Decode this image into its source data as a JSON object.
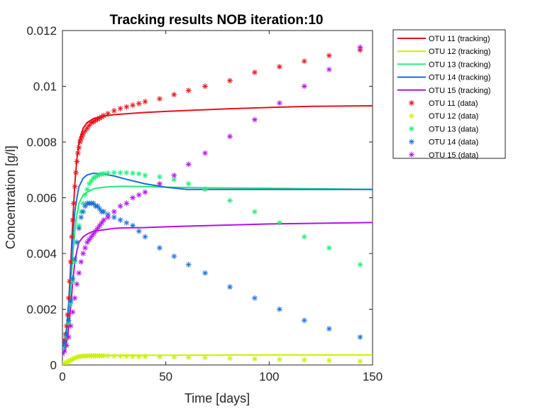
{
  "chart_data": {
    "type": "line",
    "title": "Tracking results NOB iteration:10",
    "xlabel": "Time [days]",
    "ylabel": "Concentration [g/l]",
    "xlim": [
      0,
      150
    ],
    "ylim": [
      0,
      0.012
    ],
    "xticks": [
      0,
      50,
      100,
      150
    ],
    "yticks": [
      0,
      0.002,
      0.004,
      0.006,
      0.008,
      0.01,
      0.012
    ],
    "xtick_labels": [
      "0",
      "50",
      "100",
      "150"
    ],
    "ytick_labels": [
      "0",
      "0.002",
      "0.004",
      "0.006",
      "0.008",
      "0.01",
      "0.012"
    ],
    "grid": false,
    "legend_position": "top-right (outside)",
    "series": [
      {
        "name": "OTU 11 (tracking)",
        "kind": "line",
        "color": "#e8101a",
        "x": [
          0,
          1,
          2,
          3,
          4,
          5,
          6,
          7,
          8,
          10,
          12,
          15,
          20,
          25,
          30,
          40,
          50,
          60,
          80,
          100,
          120,
          150
        ],
        "y": [
          0.00065,
          0.0008,
          0.0013,
          0.0022,
          0.0036,
          0.0052,
          0.0065,
          0.0074,
          0.008,
          0.0085,
          0.0087,
          0.00884,
          0.00893,
          0.00898,
          0.00901,
          0.00906,
          0.0091,
          0.00913,
          0.00919,
          0.00924,
          0.00928,
          0.0093
        ]
      },
      {
        "name": "OTU 12 (tracking)",
        "kind": "line",
        "color": "#ccf000",
        "x": [
          0,
          2,
          4,
          6,
          8,
          10,
          15,
          20,
          30,
          50,
          100,
          150
        ],
        "y": [
          3e-05,
          6e-05,
          0.00013,
          0.00022,
          0.00028,
          0.00031,
          0.00033,
          0.00034,
          0.00035,
          0.00035,
          0.00036,
          0.00036
        ]
      },
      {
        "name": "OTU 13 (tracking)",
        "kind": "line",
        "color": "#20ec7a",
        "x": [
          0,
          1,
          2,
          3,
          4,
          5,
          6,
          7,
          8,
          10,
          12,
          15,
          20,
          25,
          30,
          40,
          50,
          70,
          100,
          150
        ],
        "y": [
          0.0006,
          0.0007,
          0.0011,
          0.0018,
          0.0028,
          0.0039,
          0.0048,
          0.0054,
          0.0058,
          0.0061,
          0.0062,
          0.00632,
          0.00638,
          0.0064,
          0.00641,
          0.0064,
          0.00638,
          0.00636,
          0.00634,
          0.0063
        ]
      },
      {
        "name": "OTU 14 (tracking)",
        "kind": "line",
        "color": "#1a6fd8",
        "x": [
          0,
          1,
          2,
          3,
          4,
          5,
          6,
          7,
          8,
          10,
          12,
          15,
          20,
          25,
          30,
          40,
          50,
          60,
          80,
          100,
          120,
          150
        ],
        "y": [
          0.0007,
          0.0008,
          0.0013,
          0.0022,
          0.0034,
          0.0046,
          0.0055,
          0.006,
          0.0064,
          0.0067,
          0.00682,
          0.00688,
          0.00685,
          0.00678,
          0.00668,
          0.0065,
          0.00638,
          0.0063,
          0.0063,
          0.0063,
          0.0063,
          0.0063
        ]
      },
      {
        "name": "OTU 15 (tracking)",
        "kind": "line",
        "color": "#b212e6",
        "x": [
          0,
          1,
          2,
          3,
          4,
          5,
          6,
          7,
          8,
          10,
          12,
          15,
          20,
          25,
          30,
          40,
          50,
          70,
          100,
          150
        ],
        "y": [
          0.0004,
          0.0005,
          0.0008,
          0.0013,
          0.0021,
          0.003,
          0.0037,
          0.0041,
          0.0044,
          0.0046,
          0.0047,
          0.0048,
          0.00485,
          0.0049,
          0.00492,
          0.00493,
          0.00496,
          0.005,
          0.00506,
          0.00511
        ]
      },
      {
        "name": "OTU 11 (data)",
        "kind": "marker",
        "color": "#e8101a",
        "x": [
          0,
          0.5,
          1,
          1.5,
          2,
          2.5,
          3,
          3.5,
          4,
          4.5,
          5,
          5.5,
          6,
          6.5,
          7,
          7.5,
          8,
          8.5,
          9,
          9.5,
          10,
          11,
          12,
          13,
          14,
          15,
          16,
          17,
          18,
          19,
          20,
          22,
          25,
          28,
          31,
          34,
          37,
          40,
          47,
          54,
          61,
          69,
          81,
          93,
          105,
          117,
          129,
          144
        ],
        "y": [
          0.0007,
          0.0008,
          0.0009,
          0.0011,
          0.0014,
          0.0018,
          0.0024,
          0.003,
          0.0037,
          0.0046,
          0.0052,
          0.0058,
          0.0064,
          0.0069,
          0.0073,
          0.0076,
          0.0078,
          0.008,
          0.0081,
          0.0082,
          0.0083,
          0.0084,
          0.0085,
          0.0086,
          0.0087,
          0.00872,
          0.00878,
          0.00882,
          0.00886,
          0.0089,
          0.00895,
          0.00902,
          0.00912,
          0.0092,
          0.00926,
          0.00932,
          0.00938,
          0.00945,
          0.00955,
          0.0097,
          0.00985,
          0.01,
          0.0102,
          0.0105,
          0.0107,
          0.0109,
          0.0111,
          0.0113
        ]
      },
      {
        "name": "OTU 12 (data)",
        "kind": "marker",
        "color": "#ccf000",
        "x": [
          0,
          1,
          2,
          3,
          4,
          5,
          6,
          7,
          8,
          9,
          10,
          11,
          12,
          13,
          14,
          15,
          16,
          17,
          18,
          19,
          20,
          22,
          25,
          28,
          31,
          34,
          37,
          40,
          47,
          54,
          61,
          69,
          81,
          93,
          105,
          117,
          129,
          144
        ],
        "y": [
          4e-05,
          6e-05,
          0.0001,
          0.00014,
          0.00018,
          0.00022,
          0.00025,
          0.00028,
          0.0003,
          0.00031,
          0.00032,
          0.00032,
          0.00033,
          0.00033,
          0.00033,
          0.00033,
          0.00033,
          0.00033,
          0.00033,
          0.00033,
          0.00033,
          0.00033,
          0.00032,
          0.00032,
          0.00031,
          0.00031,
          0.0003,
          0.0003,
          0.00029,
          0.00028,
          0.00027,
          0.00026,
          0.00024,
          0.00022,
          0.0002,
          0.00018,
          0.00016,
          0.00013
        ]
      },
      {
        "name": "OTU 13 (data)",
        "kind": "marker",
        "color": "#20ec7a",
        "x": [
          0,
          1,
          2,
          3,
          4,
          5,
          6,
          7,
          8,
          9,
          10,
          11,
          12,
          13,
          14,
          15,
          16,
          17,
          18,
          19,
          20,
          22,
          25,
          28,
          31,
          34,
          37,
          40,
          47,
          54,
          61,
          69,
          81,
          93,
          105,
          117,
          129,
          144
        ],
        "y": [
          0.0006,
          0.0007,
          0.001,
          0.0015,
          0.0022,
          0.003,
          0.0037,
          0.0044,
          0.005,
          0.0055,
          0.0058,
          0.0061,
          0.0063,
          0.0065,
          0.0066,
          0.0067,
          0.00675,
          0.0068,
          0.00683,
          0.00685,
          0.00686,
          0.00688,
          0.0069,
          0.0069,
          0.0069,
          0.00688,
          0.00686,
          0.0068,
          0.00675,
          0.00665,
          0.0065,
          0.0063,
          0.0059,
          0.0055,
          0.0051,
          0.0046,
          0.0042,
          0.0036
        ]
      },
      {
        "name": "OTU 14 (data)",
        "kind": "marker",
        "color": "#1a6fd8",
        "x": [
          0,
          1,
          2,
          3,
          4,
          5,
          6,
          7,
          8,
          9,
          10,
          11,
          12,
          13,
          14,
          15,
          16,
          17,
          18,
          19,
          20,
          22,
          25,
          28,
          31,
          34,
          37,
          40,
          47,
          54,
          61,
          69,
          81,
          93,
          105,
          117,
          129,
          144
        ],
        "y": [
          0.0007,
          0.0008,
          0.0011,
          0.0016,
          0.0023,
          0.0031,
          0.0038,
          0.0044,
          0.0049,
          0.0053,
          0.0055,
          0.0057,
          0.0058,
          0.0058,
          0.0058,
          0.0058,
          0.0057,
          0.0057,
          0.0056,
          0.0055,
          0.0055,
          0.0054,
          0.0053,
          0.0052,
          0.0051,
          0.005,
          0.0048,
          0.0046,
          0.0042,
          0.0039,
          0.0036,
          0.0033,
          0.0028,
          0.0024,
          0.002,
          0.0016,
          0.0013,
          0.001
        ]
      },
      {
        "name": "OTU 15 (data)",
        "kind": "marker",
        "color": "#b212e6",
        "x": [
          0,
          1,
          2,
          3,
          4,
          5,
          6,
          7,
          8,
          9,
          10,
          11,
          12,
          13,
          14,
          15,
          16,
          17,
          18,
          19,
          20,
          22,
          25,
          28,
          31,
          34,
          37,
          40,
          47,
          54,
          61,
          69,
          81,
          93,
          105,
          117,
          129,
          144
        ],
        "y": [
          0.0004,
          0.0005,
          0.0007,
          0.001,
          0.0014,
          0.0019,
          0.0024,
          0.0029,
          0.0033,
          0.0037,
          0.004,
          0.0042,
          0.0044,
          0.0045,
          0.0046,
          0.0047,
          0.0048,
          0.0049,
          0.005,
          0.0051,
          0.0052,
          0.0053,
          0.0055,
          0.0057,
          0.0058,
          0.006,
          0.0061,
          0.0062,
          0.0065,
          0.0068,
          0.0072,
          0.0076,
          0.0082,
          0.0088,
          0.0094,
          0.01,
          0.0106,
          0.0114
        ]
      }
    ]
  }
}
